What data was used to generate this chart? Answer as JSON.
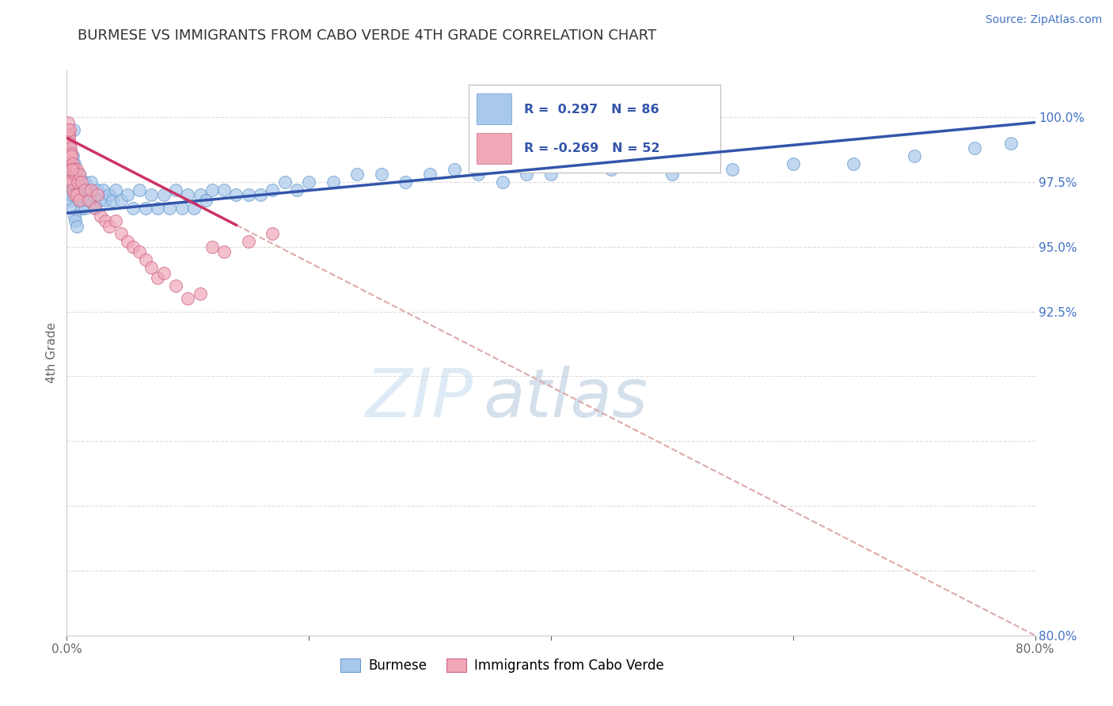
{
  "title": "BURMESE VS IMMIGRANTS FROM CABO VERDE 4TH GRADE CORRELATION CHART",
  "source_text": "Source: ZipAtlas.com",
  "ylabel": "4th Grade",
  "xlim": [
    0.0,
    80.0
  ],
  "ylim": [
    80.0,
    101.8
  ],
  "y_ticks_right": [
    80.0,
    82.5,
    85.0,
    87.5,
    90.0,
    92.5,
    95.0,
    97.5,
    100.0
  ],
  "y_tick_labels_right": [
    "80.0%",
    "",
    "",
    "",
    "",
    "92.5%",
    "95.0%",
    "97.5%",
    "100.0%"
  ],
  "blue_color": "#A8C8EC",
  "blue_edge_color": "#6699CC",
  "pink_color": "#F0A8B8",
  "pink_edge_color": "#CC6688",
  "blue_line_color": "#3355AA",
  "pink_line_color": "#CC3366",
  "dashed_line_color": "#DDAAAA",
  "R_blue": 0.297,
  "N_blue": 86,
  "R_pink": -0.269,
  "N_pink": 52,
  "legend_label_blue": "Burmese",
  "legend_label_pink": "Immigrants from Cabo Verde",
  "watermark": "ZIPatlas",
  "blue_line_x0": 0.0,
  "blue_line_y0": 96.3,
  "blue_line_x1": 80.0,
  "blue_line_y1": 99.8,
  "pink_line_x0": 0.0,
  "pink_line_y0": 99.2,
  "pink_line_x1": 80.0,
  "pink_line_y1": 80.0,
  "pink_solid_end_x": 14.0,
  "blue_scatter_x": [
    0.15,
    0.15,
    0.2,
    0.2,
    0.25,
    0.25,
    0.3,
    0.3,
    0.35,
    0.35,
    0.4,
    0.4,
    0.45,
    0.5,
    0.5,
    0.6,
    0.6,
    0.7,
    0.7,
    0.8,
    0.8,
    0.9,
    1.0,
    1.0,
    1.1,
    1.2,
    1.3,
    1.5,
    1.5,
    1.7,
    1.8,
    2.0,
    2.0,
    2.2,
    2.3,
    2.5,
    2.7,
    3.0,
    3.2,
    3.5,
    3.8,
    4.0,
    4.5,
    5.0,
    5.5,
    6.0,
    6.5,
    7.0,
    7.5,
    8.0,
    8.5,
    9.0,
    9.5,
    10.0,
    10.5,
    11.0,
    11.5,
    12.0,
    13.0,
    14.0,
    15.0,
    16.0,
    17.0,
    18.0,
    19.0,
    20.0,
    22.0,
    24.0,
    26.0,
    28.0,
    30.0,
    32.0,
    34.0,
    36.0,
    38.0,
    40.0,
    45.0,
    50.0,
    55.0,
    60.0,
    65.0,
    70.0,
    75.0,
    78.0,
    0.1,
    0.55
  ],
  "blue_scatter_y": [
    98.8,
    97.8,
    99.0,
    98.0,
    98.5,
    97.5,
    98.2,
    97.2,
    97.8,
    96.8,
    98.0,
    97.0,
    97.5,
    98.5,
    96.5,
    98.2,
    96.2,
    97.8,
    96.0,
    97.5,
    95.8,
    97.2,
    97.8,
    96.8,
    97.0,
    96.5,
    96.8,
    97.5,
    96.5,
    97.2,
    96.8,
    97.5,
    96.8,
    97.0,
    96.5,
    97.2,
    96.8,
    97.2,
    96.8,
    97.0,
    96.8,
    97.2,
    96.8,
    97.0,
    96.5,
    97.2,
    96.5,
    97.0,
    96.5,
    97.0,
    96.5,
    97.2,
    96.5,
    97.0,
    96.5,
    97.0,
    96.8,
    97.2,
    97.2,
    97.0,
    97.0,
    97.0,
    97.2,
    97.5,
    97.2,
    97.5,
    97.5,
    97.8,
    97.8,
    97.5,
    97.8,
    98.0,
    97.8,
    97.5,
    97.8,
    97.8,
    98.0,
    97.8,
    98.0,
    98.2,
    98.2,
    98.5,
    98.8,
    99.0,
    98.5,
    99.5
  ],
  "pink_scatter_x": [
    0.1,
    0.1,
    0.15,
    0.15,
    0.2,
    0.2,
    0.25,
    0.25,
    0.3,
    0.3,
    0.35,
    0.35,
    0.4,
    0.4,
    0.5,
    0.5,
    0.6,
    0.6,
    0.7,
    0.8,
    0.8,
    0.9,
    1.0,
    1.0,
    1.2,
    1.5,
    1.8,
    2.0,
    2.3,
    2.5,
    2.8,
    3.2,
    3.5,
    4.0,
    4.5,
    5.0,
    5.5,
    6.0,
    6.5,
    7.0,
    7.5,
    8.0,
    9.0,
    10.0,
    11.0,
    12.0,
    13.0,
    15.0,
    17.0,
    0.12,
    0.22,
    0.45
  ],
  "pink_scatter_y": [
    99.5,
    98.5,
    99.3,
    98.3,
    99.2,
    98.2,
    99.0,
    98.0,
    98.8,
    97.8,
    98.6,
    97.6,
    98.5,
    97.5,
    98.2,
    97.2,
    98.0,
    97.0,
    97.8,
    98.0,
    97.0,
    97.5,
    97.8,
    96.8,
    97.5,
    97.2,
    96.8,
    97.2,
    96.5,
    97.0,
    96.2,
    96.0,
    95.8,
    96.0,
    95.5,
    95.2,
    95.0,
    94.8,
    94.5,
    94.2,
    93.8,
    94.0,
    93.5,
    93.0,
    93.2,
    95.0,
    94.8,
    95.2,
    95.5,
    99.8,
    99.5,
    98.0
  ]
}
